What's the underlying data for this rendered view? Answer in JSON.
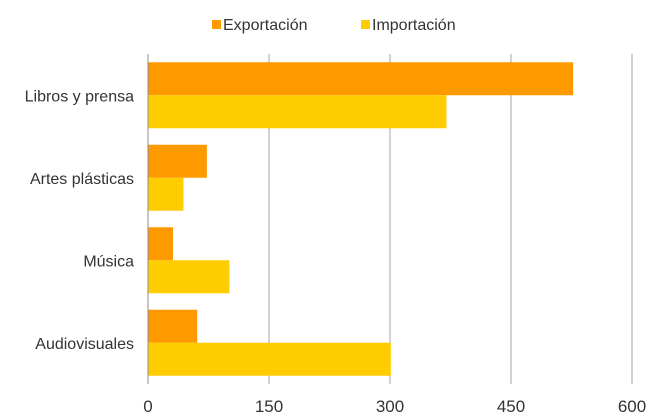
{
  "chart_data": {
    "type": "bar",
    "orientation": "horizontal",
    "categories": [
      "Libros y prensa",
      "Artes plásticas",
      "Música",
      "Audiovisuales"
    ],
    "series": [
      {
        "name": "Exportación",
        "color": "#FF9900",
        "values": [
          527,
          73,
          31,
          61
        ]
      },
      {
        "name": "Importación",
        "color": "#FFCC00",
        "values": [
          370,
          44,
          101,
          301
        ]
      }
    ],
    "xlim": [
      0,
      600
    ],
    "xticks": [
      0,
      150,
      300,
      450,
      600
    ],
    "xtick_labels": [
      "0",
      "150",
      "300",
      "450",
      "600"
    ],
    "grid": "vertical",
    "legend_position": "top"
  }
}
